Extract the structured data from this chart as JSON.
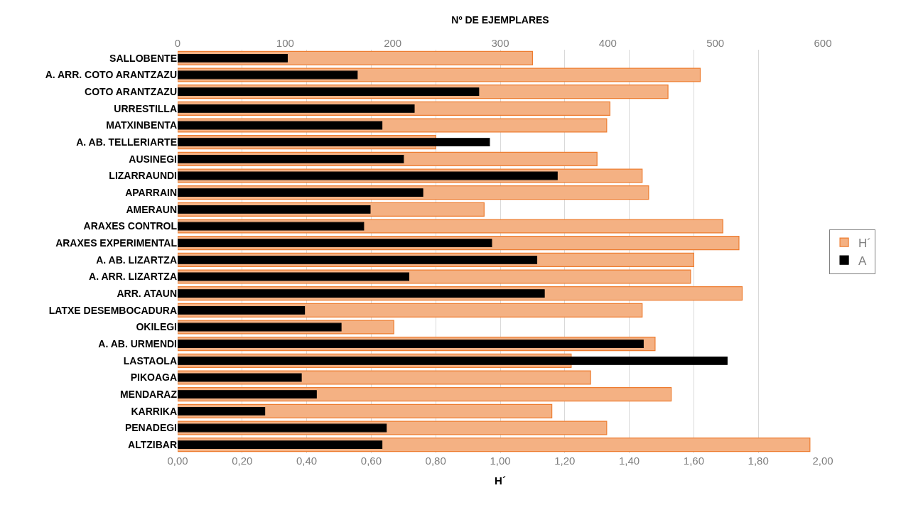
{
  "chart_data": {
    "type": "bar",
    "orientation": "horizontal",
    "x2label": "Nº DE EJEMPLARES",
    "xlabel": "H´",
    "categories": [
      "SALLOBENTE",
      "A. ARR. COTO ARANTZAZU",
      "COTO ARANTZAZU",
      "URRESTILLA",
      "MATXINBENTA",
      "A. AB. TELLERIARTE",
      "AUSINEGI",
      "LIZARRAUNDI",
      "APARRAIN",
      "AMERAUN",
      "ARAXES CONTROL",
      "ARAXES EXPERIMENTAL",
      "A. AB. LIZARTZA",
      "A. ARR. LIZARTZA",
      "ARR. ATAUN",
      "LATXE DESEMBOCADURA",
      "OKILEGI",
      "A. AB. URMENDI",
      "LASTAOLA",
      "PIKOAGA",
      "MENDARAZ",
      "KARRIKA",
      "PENADEGI",
      "ALTZIBAR"
    ],
    "series": [
      {
        "name": "H´",
        "color": "#f4b183",
        "values": [
          1.1,
          1.62,
          1.52,
          1.34,
          1.33,
          0.8,
          1.3,
          1.44,
          1.46,
          0.95,
          1.69,
          1.74,
          1.6,
          1.59,
          1.75,
          1.44,
          0.67,
          1.48,
          1.22,
          1.28,
          1.53,
          1.16,
          1.33,
          1.96
        ]
      },
      {
        "name": "A",
        "color": "#000000",
        "axis": "x2",
        "values": [
          102,
          167,
          280,
          220,
          190,
          290,
          210,
          353,
          228,
          179,
          173,
          292,
          334,
          215,
          341,
          118,
          152,
          433,
          511,
          115,
          129,
          81,
          194,
          190
        ]
      }
    ],
    "xlim": [
      0,
      2.0
    ],
    "xticks": [
      {
        "value": 0,
        "label": "0,00"
      },
      {
        "value": 0.2,
        "label": "0,20"
      },
      {
        "value": 0.4,
        "label": "0,40"
      },
      {
        "value": 0.6,
        "label": "0,60"
      },
      {
        "value": 0.8,
        "label": "0,80"
      },
      {
        "value": 1.0,
        "label": "1,00"
      },
      {
        "value": 1.2,
        "label": "1,20"
      },
      {
        "value": 1.4,
        "label": "1,40"
      },
      {
        "value": 1.6,
        "label": "1,60"
      },
      {
        "value": 1.8,
        "label": "1,80"
      },
      {
        "value": 2.0,
        "label": "2,00"
      }
    ],
    "x2lim": [
      0,
      600
    ],
    "x2ticks": [
      0,
      100,
      200,
      300,
      400,
      500,
      600
    ],
    "grid": "x",
    "legend": "right"
  }
}
